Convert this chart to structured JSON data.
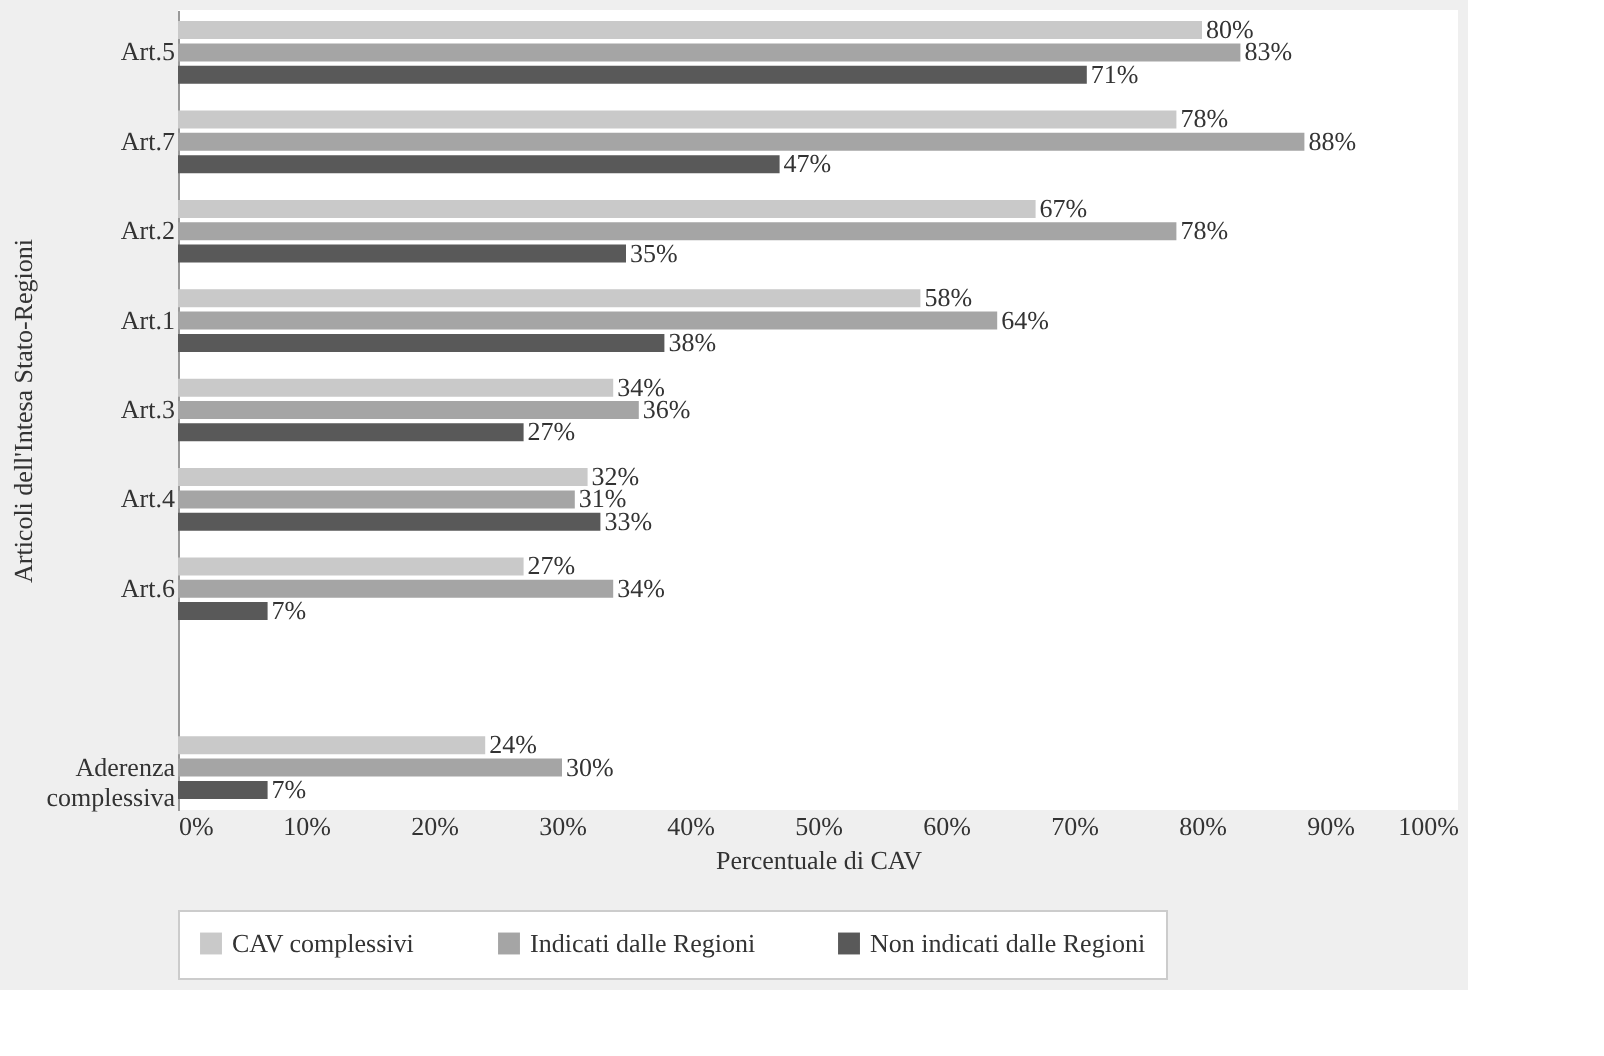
{
  "chart_data": {
    "type": "bar",
    "orientation": "horizontal",
    "xlabel": "Percentuale di CAV",
    "ylabel": "Articoli dell'Intesa Stato-Regioni",
    "categories": [
      "Art.5",
      "Art.7",
      "Art.2",
      "Art.1",
      "Art.3",
      "Art.4",
      "Art.6",
      null,
      "Aderenza complessiva"
    ],
    "series": [
      {
        "name": "CAV complessivi",
        "color": "#c9c9c9",
        "values": [
          80,
          78,
          67,
          58,
          34,
          32,
          27,
          null,
          24
        ],
        "value_labels": [
          "80%",
          "78%",
          "67%",
          "58%",
          "34%",
          "32%",
          "27%",
          null,
          "24%"
        ]
      },
      {
        "name": "Indicati dalle Regioni",
        "color": "#a5a5a5",
        "values": [
          83,
          88,
          78,
          64,
          36,
          31,
          34,
          null,
          30
        ],
        "value_labels": [
          "83%",
          "88%",
          "78%",
          "64%",
          "36%",
          "31%",
          "34%",
          null,
          "30%"
        ]
      },
      {
        "name": "Non indicati dalle Regioni",
        "color": "#595959",
        "values": [
          71,
          47,
          35,
          38,
          27,
          33,
          7,
          null,
          7
        ],
        "value_labels": [
          "71%",
          "47%",
          "35%",
          "38%",
          "27%",
          "33%",
          "7%",
          null,
          "7%"
        ]
      }
    ],
    "xlim": [
      0,
      100
    ],
    "xticks": [
      {
        "value": 0,
        "label": "0%"
      },
      {
        "value": 10,
        "label": "10%"
      },
      {
        "value": 20,
        "label": "20%"
      },
      {
        "value": 30,
        "label": "30%"
      },
      {
        "value": 40,
        "label": "40%"
      },
      {
        "value": 50,
        "label": "50%"
      },
      {
        "value": 60,
        "label": "60%"
      },
      {
        "value": 70,
        "label": "70%"
      },
      {
        "value": 80,
        "label": "80%"
      },
      {
        "value": 90,
        "label": "90%"
      },
      {
        "value": 100,
        "label": "100%"
      }
    ],
    "grid": false,
    "legend": "bottom"
  }
}
